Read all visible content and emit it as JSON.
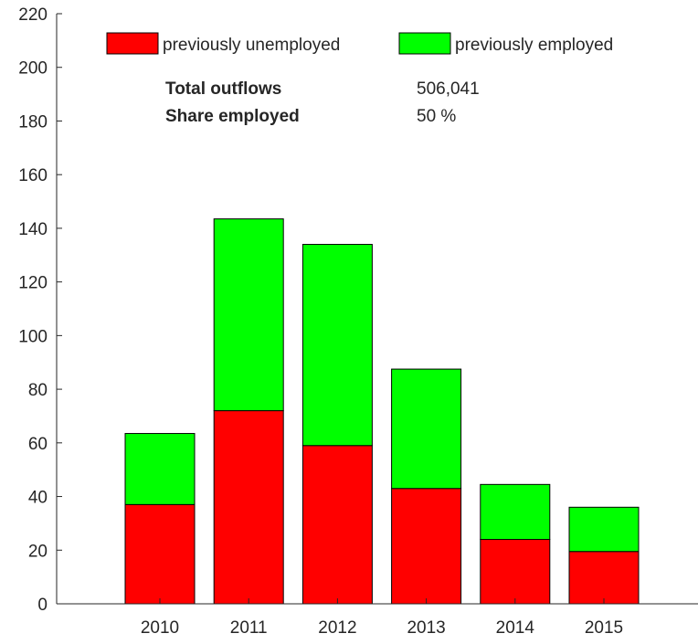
{
  "chart_data": {
    "type": "bar",
    "stacked": true,
    "categories": [
      "2010",
      "2011",
      "2012",
      "2013",
      "2014",
      "2015"
    ],
    "series": [
      {
        "name": "previously unemployed",
        "color": "#ff0000",
        "values": [
          37,
          72,
          59,
          43,
          24,
          19.5
        ]
      },
      {
        "name": "previously employed",
        "color": "#00ff00",
        "values": [
          26.5,
          71.5,
          75,
          44.5,
          20.5,
          16.5
        ]
      }
    ],
    "ylim": [
      0,
      220
    ],
    "yticks": [
      0,
      20,
      40,
      60,
      80,
      100,
      120,
      140,
      160,
      180,
      200,
      220
    ],
    "grid": false,
    "legend": {
      "placement": "top",
      "orientation": "horizontal"
    },
    "annotations": [
      {
        "label": "Total outflows",
        "value": "506,041"
      },
      {
        "label": "Share employed",
        "value": "50 %"
      }
    ]
  }
}
